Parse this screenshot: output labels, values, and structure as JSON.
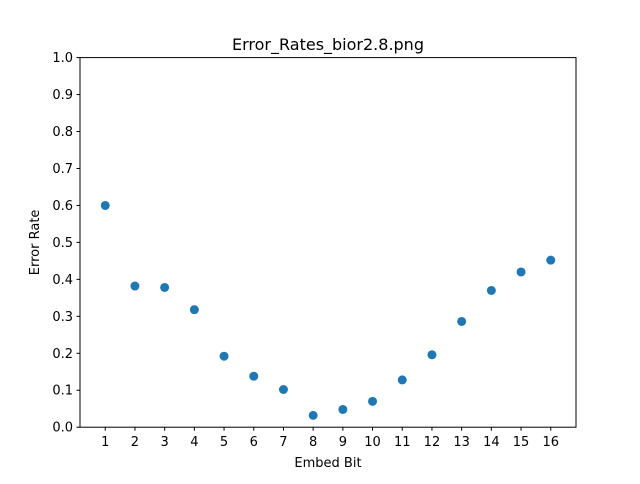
{
  "chart_data": {
    "type": "scatter",
    "title": "Error_Rates_bior2.8.png",
    "xlabel": "Embed Bit",
    "ylabel": "Error Rate",
    "x": [
      1,
      2,
      3,
      4,
      5,
      6,
      7,
      8,
      9,
      10,
      11,
      12,
      13,
      14,
      15,
      16
    ],
    "y": [
      0.6,
      0.382,
      0.378,
      0.318,
      0.192,
      0.138,
      0.102,
      0.032,
      0.048,
      0.07,
      0.128,
      0.196,
      0.286,
      0.37,
      0.42,
      0.452
    ],
    "xlim": [
      0.15,
      16.85
    ],
    "ylim": [
      0.0,
      1.0
    ],
    "xticks": [
      "1",
      "2",
      "3",
      "4",
      "5",
      "6",
      "7",
      "8",
      "9",
      "10",
      "11",
      "12",
      "13",
      "14",
      "15",
      "16"
    ],
    "yticks": [
      "0.0",
      "0.1",
      "0.2",
      "0.3",
      "0.4",
      "0.5",
      "0.6",
      "0.7",
      "0.8",
      "0.9",
      "1.0"
    ],
    "grid": false,
    "legend": "none",
    "marker_color": "#1f77b4"
  }
}
